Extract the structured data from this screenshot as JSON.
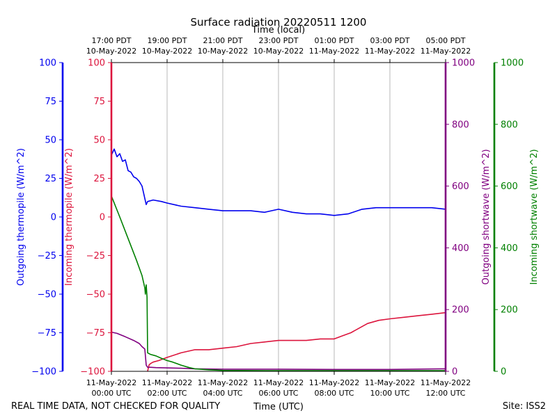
{
  "chart_data": {
    "type": "line",
    "title": "Surface radiation 20220511 1200",
    "top_xlabel": "Time (local)",
    "xlabel": "Time (UTC)",
    "footer_left": "REAL TIME DATA, NOT CHECKED FOR QUALITY",
    "footer_right": "Site: ISS2",
    "xlim": [
      0,
      12
    ],
    "bottom_ticks": [
      {
        "x": 0,
        "line1": "11-May-2022",
        "line2": "00:00 UTC"
      },
      {
        "x": 2,
        "line1": "11-May-2022",
        "line2": "02:00 UTC"
      },
      {
        "x": 4,
        "line1": "11-May-2022",
        "line2": "04:00 UTC"
      },
      {
        "x": 6,
        "line1": "11-May-2022",
        "line2": "06:00 UTC"
      },
      {
        "x": 8,
        "line1": "11-May-2022",
        "line2": "08:00 UTC"
      },
      {
        "x": 10,
        "line1": "11-May-2022",
        "line2": "10:00 UTC"
      },
      {
        "x": 12,
        "line1": "11-May-2022",
        "line2": "12:00 UTC"
      }
    ],
    "top_ticks": [
      {
        "x": 0,
        "line1": "17:00 PDT",
        "line2": "10-May-2022"
      },
      {
        "x": 2,
        "line1": "19:00 PDT",
        "line2": "10-May-2022"
      },
      {
        "x": 4,
        "line1": "21:00 PDT",
        "line2": "10-May-2022"
      },
      {
        "x": 6,
        "line1": "23:00 PDT",
        "line2": "10-May-2022"
      },
      {
        "x": 8,
        "line1": "01:00 PDT",
        "line2": "11-May-2022"
      },
      {
        "x": 10,
        "line1": "03:00 PDT",
        "line2": "11-May-2022"
      },
      {
        "x": 12,
        "line1": "05:00 PDT",
        "line2": "11-May-2022"
      }
    ],
    "axes": {
      "outgoing_thermopile": {
        "label": "Outgoing thermopile (W/m^2)",
        "color": "#0000ee",
        "ylim": [
          -100,
          100
        ],
        "ticks": [
          "100",
          "75",
          "50",
          "25",
          "0",
          "−25",
          "−50",
          "−75",
          "−100"
        ]
      },
      "incoming_thermopile": {
        "label": "Incoming thermopile (W/m^2)",
        "color": "#dc143c",
        "ylim": [
          -100,
          100
        ],
        "ticks": [
          "100",
          "75",
          "50",
          "25",
          "0",
          "−25",
          "−50",
          "−75",
          "−100"
        ]
      },
      "outgoing_shortwave": {
        "label": "Outgoing shortwave (W/m^2)",
        "color": "#800080",
        "ylim": [
          0,
          1000
        ],
        "ticks": [
          "1000",
          "800",
          "600",
          "400",
          "200",
          "0"
        ]
      },
      "incoming_shortwave": {
        "label": "Incoming shortwave (W/m^2)",
        "color": "#008000",
        "ylim": [
          0,
          1000
        ],
        "ticks": [
          "1000",
          "800",
          "600",
          "400",
          "200",
          "0"
        ]
      }
    },
    "series": [
      {
        "name": "Outgoing thermopile",
        "axis": "outgoing_thermopile",
        "color": "#0000ee",
        "x": [
          0,
          0.1,
          0.2,
          0.3,
          0.4,
          0.5,
          0.6,
          0.7,
          0.8,
          0.9,
          1.0,
          1.1,
          1.2,
          1.25,
          1.3,
          1.5,
          1.8,
          2.0,
          2.5,
          3.0,
          3.5,
          4.0,
          4.5,
          5.0,
          5.5,
          6.0,
          6.5,
          7.0,
          7.5,
          8.0,
          8.5,
          9.0,
          9.5,
          10.0,
          10.5,
          11.0,
          11.5,
          12.0
        ],
        "values": [
          40,
          44,
          39,
          41,
          36,
          37,
          30,
          29,
          26,
          25,
          23,
          20,
          12,
          8,
          10,
          11,
          10,
          9,
          7,
          6,
          5,
          4,
          4,
          4,
          3,
          5,
          3,
          2,
          2,
          1,
          2,
          5,
          6,
          6,
          6,
          6,
          6,
          5
        ]
      },
      {
        "name": "Incoming thermopile",
        "axis": "incoming_thermopile",
        "color": "#dc143c",
        "x": [
          1.3,
          1.35,
          1.4,
          1.5,
          1.7,
          2.0,
          2.5,
          3.0,
          3.5,
          4.0,
          4.5,
          5.0,
          5.5,
          6.0,
          6.5,
          7.0,
          7.5,
          8.0,
          8.3,
          8.6,
          8.9,
          9.2,
          9.6,
          10.0,
          10.5,
          11.0,
          11.5,
          12.0
        ],
        "values": [
          -100,
          -96,
          -95,
          -94,
          -93,
          -91,
          -88,
          -86,
          -86,
          -85,
          -84,
          -82,
          -81,
          -80,
          -80,
          -80,
          -79,
          -79,
          -77,
          -75,
          -72,
          -69,
          -67,
          -66,
          -65,
          -64,
          -63,
          -62
        ]
      },
      {
        "name": "Outgoing shortwave",
        "axis": "outgoing_shortwave",
        "color": "#800080",
        "x": [
          0,
          0.2,
          0.5,
          0.8,
          1.0,
          1.1,
          1.2,
          1.25,
          1.3,
          1.4,
          1.6,
          2.0,
          2.5,
          3.0,
          4.0,
          6.0,
          8.0,
          10.0,
          12.0
        ],
        "values": [
          127,
          123,
          112,
          100,
          90,
          80,
          72,
          20,
          13,
          13,
          12,
          11,
          10,
          8,
          7,
          7,
          6,
          6,
          8
        ]
      },
      {
        "name": "Incoming shortwave",
        "axis": "incoming_shortwave",
        "color": "#008000",
        "x": [
          0,
          0.3,
          0.6,
          0.9,
          1.1,
          1.2,
          1.22,
          1.25,
          1.28,
          1.3,
          1.4,
          1.6,
          1.8,
          2.0,
          2.2,
          2.5,
          2.8,
          3.0,
          3.5,
          4.0,
          6.0,
          8.0,
          10.0,
          12.0
        ],
        "values": [
          568,
          500,
          430,
          360,
          310,
          270,
          250,
          280,
          240,
          60,
          55,
          50,
          42,
          35,
          30,
          20,
          12,
          8,
          5,
          3,
          2,
          2,
          2,
          2
        ]
      }
    ]
  }
}
